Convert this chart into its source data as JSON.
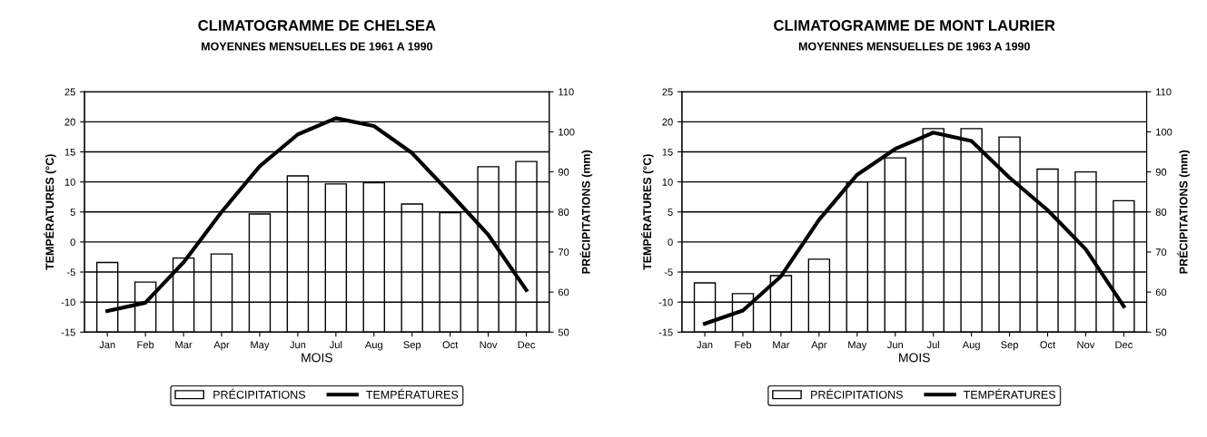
{
  "chart_data": [
    {
      "type": "bar",
      "title": "CLIMATOGRAMME DE CHELSEA",
      "subtitle": "MOYENNES MENSUELLES DE 1961 A 1990",
      "xlabel": "MOIS",
      "ylabel": "TEMPÉRATURES (°C)",
      "y2label": "PRÉCIPITATIONS (mm)",
      "categories": [
        "Jan",
        "Feb",
        "Mar",
        "Apr",
        "May",
        "Jun",
        "Jul",
        "Aug",
        "Sep",
        "Oct",
        "Nov",
        "Dec"
      ],
      "series": [
        {
          "name": "PRÉCIPITATIONS",
          "axis": "y2",
          "color": "#ffffff",
          "values": [
            67.4,
            62.5,
            68.5,
            69.5,
            79.5,
            89,
            87,
            87.3,
            82,
            79.8,
            91.3,
            92.6
          ]
        },
        {
          "name": "TEMPÉRATURES",
          "type": "line",
          "axis": "y",
          "color": "#000000",
          "values": [
            -11.5,
            -10.1,
            -3.4,
            5.0,
            12.6,
            17.9,
            20.6,
            19.3,
            14.8,
            8.1,
            1.2,
            -8.0
          ]
        }
      ],
      "ylim": [
        -15,
        25
      ],
      "yticks": [
        -15,
        -10,
        -5,
        0,
        5,
        10,
        15,
        20,
        25
      ],
      "y2lim": [
        50,
        110
      ],
      "y2ticks": [
        50,
        60,
        70,
        80,
        90,
        100,
        110
      ],
      "grid": "y",
      "legend": "bottom"
    },
    {
      "type": "bar",
      "title": "CLIMATOGRAMME DE MONT LAURIER",
      "subtitle": "MOYENNES MENSUELLES DE 1963 A 1990",
      "xlabel": "MOIS",
      "ylabel": "TEMPÉRATURES (°C)",
      "y2label": "PRÉCIPITATIONS (mm)",
      "categories": [
        "Jan",
        "Feb",
        "Mar",
        "Apr",
        "May",
        "Jun",
        "Jul",
        "Aug",
        "Sep",
        "Oct",
        "Nov",
        "Dec"
      ],
      "series": [
        {
          "name": "PRÉCIPITATIONS",
          "axis": "y2",
          "color": "#ffffff",
          "values": [
            62.3,
            59.6,
            64.1,
            68.2,
            87.5,
            93.5,
            100.8,
            100.8,
            98.7,
            90.7,
            90,
            82.8
          ]
        },
        {
          "name": "TEMPÉRATURES",
          "type": "line",
          "axis": "y",
          "color": "#000000",
          "values": [
            -13.6,
            -11.4,
            -5.7,
            3.7,
            11.2,
            15.5,
            18.2,
            16.8,
            10.7,
            5.3,
            -1.2,
            -10.7
          ]
        }
      ],
      "ylim": [
        -15,
        25
      ],
      "yticks": [
        -15,
        -10,
        -5,
        0,
        5,
        10,
        15,
        20,
        25
      ],
      "y2lim": [
        50,
        110
      ],
      "y2ticks": [
        50,
        60,
        70,
        80,
        90,
        100,
        110
      ],
      "grid": "y",
      "legend": "bottom"
    }
  ]
}
